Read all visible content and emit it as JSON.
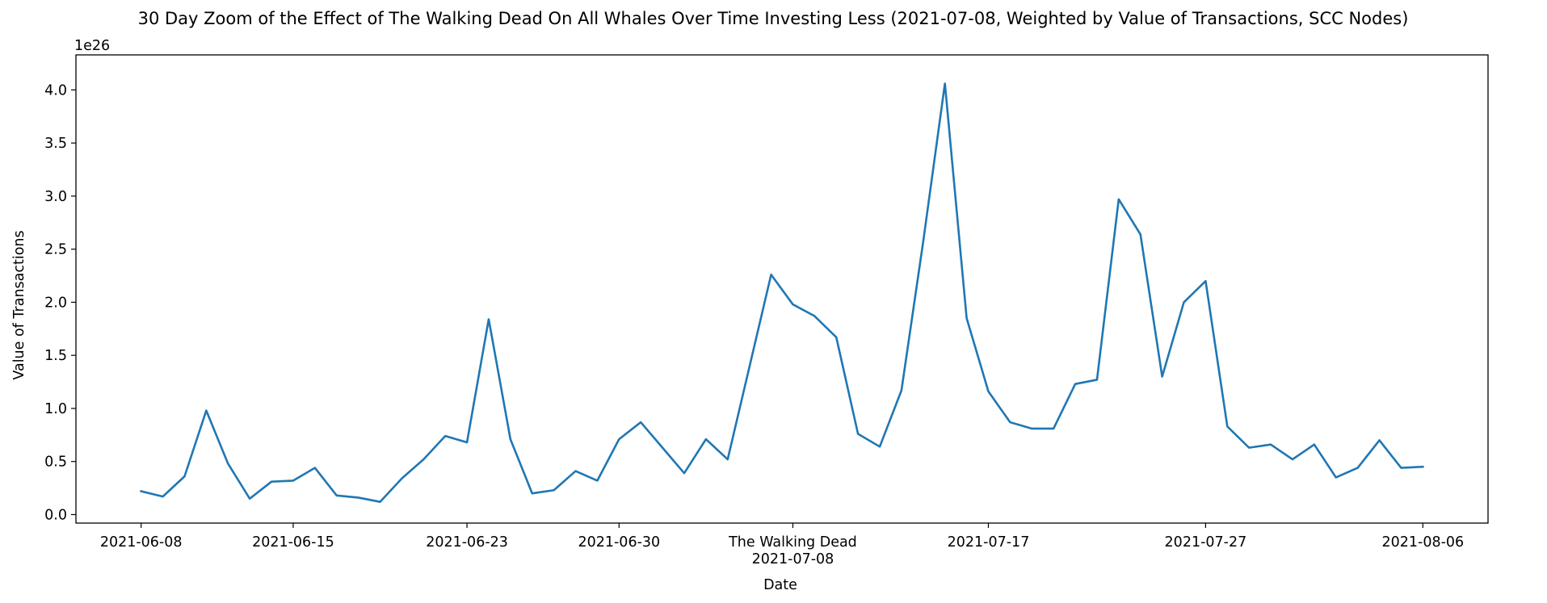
{
  "chart_data": {
    "type": "line",
    "title": "30 Day Zoom of the Effect of The Walking Dead On All Whales Over Time Investing Less (2021-07-08, Weighted by Value of Transactions, SCC Nodes)",
    "xlabel": "Date",
    "ylabel": "Value of Transactions",
    "y_offset_label": "1e26",
    "ylim": [
      -0.08,
      4.33
    ],
    "xlim": [
      "2021-06-05",
      "2021-08-09"
    ],
    "grid": false,
    "color": "#1f77b4",
    "x_ticks": [
      {
        "date": "2021-06-08",
        "label": "2021-06-08"
      },
      {
        "date": "2021-06-15",
        "label": "2021-06-15"
      },
      {
        "date": "2021-06-23",
        "label": "2021-06-23"
      },
      {
        "date": "2021-06-30",
        "label": "2021-06-30"
      },
      {
        "date": "2021-07-08",
        "label": "2021-07-08",
        "event": "The Walking Dead"
      },
      {
        "date": "2021-07-17",
        "label": "2021-07-17"
      },
      {
        "date": "2021-07-27",
        "label": "2021-07-27"
      },
      {
        "date": "2021-08-06",
        "label": "2021-08-06"
      }
    ],
    "y_ticks": [
      {
        "value": 0.0,
        "label": "0.0"
      },
      {
        "value": 0.5,
        "label": "0.5"
      },
      {
        "value": 1.0,
        "label": "1.0"
      },
      {
        "value": 1.5,
        "label": "1.5"
      },
      {
        "value": 2.0,
        "label": "2.0"
      },
      {
        "value": 2.5,
        "label": "2.5"
      },
      {
        "value": 3.0,
        "label": "3.0"
      },
      {
        "value": 3.5,
        "label": "3.5"
      },
      {
        "value": 4.0,
        "label": "4.0"
      }
    ],
    "x": [
      "2021-06-08",
      "2021-06-09",
      "2021-06-10",
      "2021-06-11",
      "2021-06-12",
      "2021-06-13",
      "2021-06-14",
      "2021-06-15",
      "2021-06-16",
      "2021-06-17",
      "2021-06-18",
      "2021-06-19",
      "2021-06-20",
      "2021-06-21",
      "2021-06-22",
      "2021-06-23",
      "2021-06-24",
      "2021-06-25",
      "2021-06-26",
      "2021-06-27",
      "2021-06-28",
      "2021-06-29",
      "2021-06-30",
      "2021-07-01",
      "2021-07-02",
      "2021-07-03",
      "2021-07-04",
      "2021-07-05",
      "2021-07-06",
      "2021-07-07",
      "2021-07-08",
      "2021-07-09",
      "2021-07-10",
      "2021-07-11",
      "2021-07-12",
      "2021-07-13",
      "2021-07-14",
      "2021-07-15",
      "2021-07-16",
      "2021-07-17",
      "2021-07-18",
      "2021-07-19",
      "2021-07-20",
      "2021-07-21",
      "2021-07-22",
      "2021-07-23",
      "2021-07-24",
      "2021-07-25",
      "2021-07-26",
      "2021-07-27",
      "2021-07-28",
      "2021-07-29",
      "2021-07-30",
      "2021-07-31",
      "2021-08-01",
      "2021-08-02",
      "2021-08-03",
      "2021-08-04",
      "2021-08-05",
      "2021-08-06"
    ],
    "values": [
      0.22,
      0.17,
      0.36,
      0.98,
      0.48,
      0.15,
      0.31,
      0.32,
      0.44,
      0.18,
      0.16,
      0.12,
      0.34,
      0.52,
      0.74,
      0.68,
      1.84,
      0.71,
      0.2,
      0.23,
      0.41,
      0.32,
      0.71,
      0.87,
      0.63,
      0.39,
      0.71,
      0.52,
      1.39,
      2.26,
      1.98,
      1.87,
      1.67,
      0.76,
      0.64,
      1.17,
      2.57,
      4.06,
      1.85,
      1.16,
      0.87,
      0.81,
      0.81,
      1.23,
      1.27,
      2.97,
      2.64,
      1.3,
      2.0,
      2.2,
      0.83,
      0.63,
      0.66,
      0.52,
      0.66,
      0.35,
      0.44,
      0.7,
      0.44,
      0.45
    ]
  }
}
